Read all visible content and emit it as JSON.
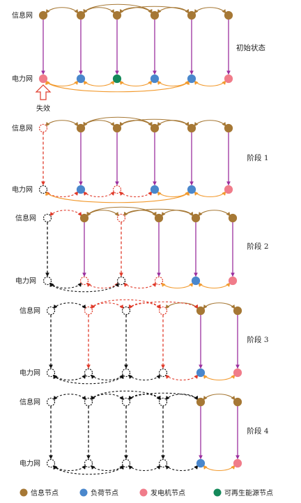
{
  "labels": {
    "info": "信息网",
    "power": "电力网",
    "failure": "失效"
  },
  "stages": [
    {
      "title": "初始状态",
      "info": [
        "I",
        "I",
        "I",
        "I",
        "I",
        "I"
      ],
      "power": [
        "G",
        "L",
        "R",
        "L",
        "L",
        "G"
      ],
      "info_links": [
        {
          "from": 0,
          "to": 1,
          "style": "B"
        },
        {
          "from": 1,
          "to": 2,
          "style": "B"
        },
        {
          "from": 2,
          "to": 3,
          "style": "B"
        },
        {
          "from": 3,
          "to": 4,
          "style": "B"
        },
        {
          "from": 4,
          "to": 5,
          "style": "B"
        },
        {
          "from": 1,
          "to": 3,
          "style": "B"
        },
        {
          "from": 2,
          "to": 4,
          "style": "B"
        }
      ],
      "power_links": [
        {
          "from": 0,
          "to": 1,
          "style": "O"
        },
        {
          "from": 1,
          "to": 2,
          "style": "O"
        },
        {
          "from": 2,
          "to": 3,
          "style": "O"
        },
        {
          "from": 3,
          "to": 4,
          "style": "O"
        },
        {
          "from": 4,
          "to": 5,
          "style": "O"
        },
        {
          "from": 0,
          "to": 4,
          "style": "O"
        }
      ],
      "vertical": [
        "P",
        "P",
        "P",
        "P",
        "P",
        "P"
      ]
    },
    {
      "title": "阶段 1",
      "info": [
        "X",
        "I",
        "I",
        "I",
        "I",
        "I"
      ],
      "power": [
        "K",
        "L",
        "X",
        "L",
        "L",
        "G"
      ],
      "info_links": [
        {
          "from": 0,
          "to": 1,
          "style": "B"
        },
        {
          "from": 1,
          "to": 2,
          "style": "B"
        },
        {
          "from": 2,
          "to": 3,
          "style": "B"
        },
        {
          "from": 3,
          "to": 4,
          "style": "B"
        },
        {
          "from": 4,
          "to": 5,
          "style": "B"
        },
        {
          "from": 1,
          "to": 3,
          "style": "B"
        },
        {
          "from": 2,
          "to": 4,
          "style": "B"
        }
      ],
      "power_links": [
        {
          "from": 0,
          "to": 1,
          "style": "R"
        },
        {
          "from": 1,
          "to": 2,
          "style": "R"
        },
        {
          "from": 2,
          "to": 3,
          "style": "R"
        },
        {
          "from": 3,
          "to": 4,
          "style": "O"
        },
        {
          "from": 4,
          "to": 5,
          "style": "O"
        },
        {
          "from": 0,
          "to": 4,
          "style": "O"
        }
      ],
      "vertical": [
        "R",
        "P",
        "P",
        "P",
        "P",
        "P"
      ]
    },
    {
      "title": "阶段 2",
      "info": [
        "K",
        "I",
        "X",
        "I",
        "I",
        "I"
      ],
      "power": [
        "K",
        "X",
        "K",
        "X",
        "L",
        "G"
      ],
      "info_links": [
        {
          "from": 0,
          "to": 1,
          "style": "R"
        },
        {
          "from": 1,
          "to": 2,
          "style": "B"
        },
        {
          "from": 2,
          "to": 3,
          "style": "B"
        },
        {
          "from": 3,
          "to": 4,
          "style": "B"
        },
        {
          "from": 4,
          "to": 5,
          "style": "B"
        },
        {
          "from": 1,
          "to": 3,
          "style": "B"
        },
        {
          "from": 2,
          "to": 4,
          "style": "B"
        }
      ],
      "power_links": [
        {
          "from": 0,
          "to": 1,
          "style": "K"
        },
        {
          "from": 1,
          "to": 2,
          "style": "R"
        },
        {
          "from": 2,
          "to": 3,
          "style": "R"
        },
        {
          "from": 3,
          "to": 4,
          "style": "O"
        },
        {
          "from": 4,
          "to": 5,
          "style": "O"
        },
        {
          "from": 0,
          "to": 2,
          "style": "K"
        }
      ],
      "vertical": [
        "K",
        "P",
        "R",
        "P",
        "P",
        "P"
      ]
    },
    {
      "title": "阶段 3",
      "info": [
        "K",
        "X",
        "K",
        "X",
        "I",
        "I"
      ],
      "power": [
        "K",
        "K",
        "K",
        "K",
        "L",
        "G"
      ],
      "info_links": [
        {
          "from": 0,
          "to": 1,
          "style": "K"
        },
        {
          "from": 1,
          "to": 2,
          "style": "R"
        },
        {
          "from": 2,
          "to": 3,
          "style": "R"
        },
        {
          "from": 3,
          "to": 4,
          "style": "B"
        },
        {
          "from": 4,
          "to": 5,
          "style": "B"
        },
        {
          "from": 1,
          "to": 3,
          "style": "R"
        },
        {
          "from": 2,
          "to": 4,
          "style": "R"
        }
      ],
      "power_links": [
        {
          "from": 0,
          "to": 1,
          "style": "K"
        },
        {
          "from": 1,
          "to": 2,
          "style": "K"
        },
        {
          "from": 2,
          "to": 3,
          "style": "K"
        },
        {
          "from": 3,
          "to": 4,
          "style": "R"
        },
        {
          "from": 4,
          "to": 5,
          "style": "O"
        },
        {
          "from": 0,
          "to": 2,
          "style": "K"
        }
      ],
      "vertical": [
        "K",
        "R",
        "K",
        "R",
        "P",
        "P"
      ]
    },
    {
      "title": "阶段 4",
      "info": [
        "K",
        "K",
        "K",
        "K",
        "I",
        "I"
      ],
      "power": [
        "K",
        "K",
        "K",
        "K",
        "L",
        "G"
      ],
      "info_links": [
        {
          "from": 0,
          "to": 1,
          "style": "K"
        },
        {
          "from": 1,
          "to": 2,
          "style": "K"
        },
        {
          "from": 2,
          "to": 3,
          "style": "K"
        },
        {
          "from": 3,
          "to": 4,
          "style": "K"
        },
        {
          "from": 4,
          "to": 5,
          "style": "B"
        },
        {
          "from": 1,
          "to": 3,
          "style": "K"
        },
        {
          "from": 2,
          "to": 4,
          "style": "K"
        }
      ],
      "power_links": [
        {
          "from": 0,
          "to": 1,
          "style": "K"
        },
        {
          "from": 1,
          "to": 2,
          "style": "K"
        },
        {
          "from": 2,
          "to": 3,
          "style": "K"
        },
        {
          "from": 3,
          "to": 4,
          "style": "K"
        },
        {
          "from": 4,
          "to": 5,
          "style": "O"
        },
        {
          "from": 0,
          "to": 2,
          "style": "K"
        }
      ],
      "vertical": [
        "K",
        "K",
        "K",
        "K",
        "P",
        "P"
      ]
    }
  ],
  "legend": [
    {
      "label": "信息节点",
      "color": "#A67835"
    },
    {
      "label": "负荷节点",
      "color": "#4A87CC"
    },
    {
      "label": "发电机节点",
      "color": "#F07C8A"
    },
    {
      "label": "可再生能源节点",
      "color": "#14895A"
    }
  ],
  "colors": {
    "info": "#A67835",
    "load": "#4A87CC",
    "generator": "#F07C8A",
    "renewable": "#14895A",
    "failed_now": "#E03A2A",
    "failed_before": "#111111",
    "info_link": "#A67835",
    "power_link": "#F29A2E",
    "coupling": "#9B2F9E"
  }
}
